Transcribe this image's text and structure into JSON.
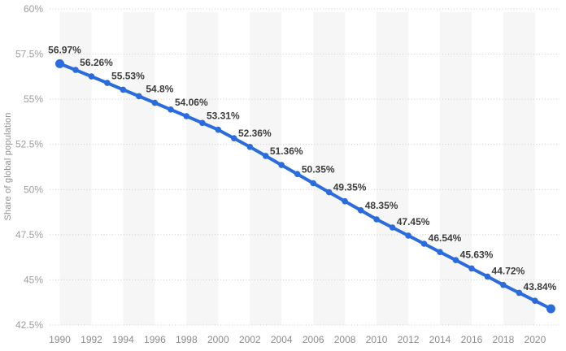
{
  "chart_data": {
    "type": "line",
    "title": "",
    "xlabel": "",
    "ylabel": "Share of global population",
    "ylim": [
      42.5,
      60
    ],
    "grid": "horizontal dotted gridlines, alternating light vertical plot bands every 2 years",
    "legend": "none",
    "yticks": [
      {
        "value": 60,
        "label": "60%"
      },
      {
        "value": 57.5,
        "label": "57.5%"
      },
      {
        "value": 55,
        "label": "55%"
      },
      {
        "value": 52.5,
        "label": "52.5%"
      },
      {
        "value": 50,
        "label": "50%"
      },
      {
        "value": 47.5,
        "label": "47.5%"
      },
      {
        "value": 45,
        "label": "45%"
      },
      {
        "value": 42.5,
        "label": "42.5%"
      }
    ],
    "xticks": [
      {
        "value": 1990,
        "label": "1990"
      },
      {
        "value": 1992,
        "label": "1992"
      },
      {
        "value": 1994,
        "label": "1994"
      },
      {
        "value": 1996,
        "label": "1996"
      },
      {
        "value": 1998,
        "label": "1998"
      },
      {
        "value": 2000,
        "label": "2000"
      },
      {
        "value": 2002,
        "label": "2002"
      },
      {
        "value": 2004,
        "label": "2004"
      },
      {
        "value": 2006,
        "label": "2006"
      },
      {
        "value": 2008,
        "label": "2008"
      },
      {
        "value": 2010,
        "label": "2010"
      },
      {
        "value": 2012,
        "label": "2012"
      },
      {
        "value": 2014,
        "label": "2014"
      },
      {
        "value": 2016,
        "label": "2016"
      },
      {
        "value": 2018,
        "label": "2018"
      },
      {
        "value": 2020,
        "label": "2020"
      }
    ],
    "plot_bands_start_years": [
      1990,
      1994,
      1998,
      2002,
      2006,
      2010,
      2014,
      2018
    ],
    "plot_band_span_years": 2,
    "series": [
      {
        "name": "Share of global population",
        "points": [
          {
            "year": 1990,
            "value": 56.97,
            "label": "56.97%"
          },
          {
            "year": 1991,
            "value": 56.62,
            "label": ""
          },
          {
            "year": 1992,
            "value": 56.26,
            "label": "56.26%"
          },
          {
            "year": 1993,
            "value": 55.9,
            "label": ""
          },
          {
            "year": 1994,
            "value": 55.53,
            "label": "55.53%"
          },
          {
            "year": 1995,
            "value": 55.17,
            "label": ""
          },
          {
            "year": 1996,
            "value": 54.8,
            "label": "54.8%"
          },
          {
            "year": 1997,
            "value": 54.43,
            "label": ""
          },
          {
            "year": 1998,
            "value": 54.06,
            "label": "54.06%"
          },
          {
            "year": 1999,
            "value": 53.69,
            "label": ""
          },
          {
            "year": 2000,
            "value": 53.31,
            "label": "53.31%"
          },
          {
            "year": 2001,
            "value": 52.84,
            "label": ""
          },
          {
            "year": 2002,
            "value": 52.36,
            "label": "52.36%"
          },
          {
            "year": 2003,
            "value": 51.86,
            "label": ""
          },
          {
            "year": 2004,
            "value": 51.36,
            "label": "51.36%"
          },
          {
            "year": 2005,
            "value": 50.86,
            "label": ""
          },
          {
            "year": 2006,
            "value": 50.35,
            "label": "50.35%"
          },
          {
            "year": 2007,
            "value": 49.85,
            "label": ""
          },
          {
            "year": 2008,
            "value": 49.35,
            "label": "49.35%"
          },
          {
            "year": 2009,
            "value": 48.85,
            "label": ""
          },
          {
            "year": 2010,
            "value": 48.35,
            "label": "48.35%"
          },
          {
            "year": 2011,
            "value": 47.9,
            "label": ""
          },
          {
            "year": 2012,
            "value": 47.45,
            "label": "47.45%"
          },
          {
            "year": 2013,
            "value": 47.0,
            "label": ""
          },
          {
            "year": 2014,
            "value": 46.54,
            "label": "46.54%"
          },
          {
            "year": 2015,
            "value": 46.09,
            "label": ""
          },
          {
            "year": 2016,
            "value": 45.63,
            "label": "45.63%"
          },
          {
            "year": 2017,
            "value": 45.18,
            "label": ""
          },
          {
            "year": 2018,
            "value": 44.72,
            "label": "44.72%"
          },
          {
            "year": 2019,
            "value": 44.28,
            "label": ""
          },
          {
            "year": 2020,
            "value": 43.84,
            "label": "43.84%"
          },
          {
            "year": 2021,
            "value": 43.4,
            "label": ""
          }
        ]
      }
    ],
    "colors": {
      "line": "#2a6bde",
      "marker": "#2a6bde",
      "plot_band": "#f6f6f6",
      "gridline": "#cccccc",
      "y_tick_text": "#9d9d9d",
      "x_tick_text": "#8c8c8c",
      "data_label_text": "#3c3c3c",
      "axis_title_text": "#8f8f8f"
    }
  }
}
